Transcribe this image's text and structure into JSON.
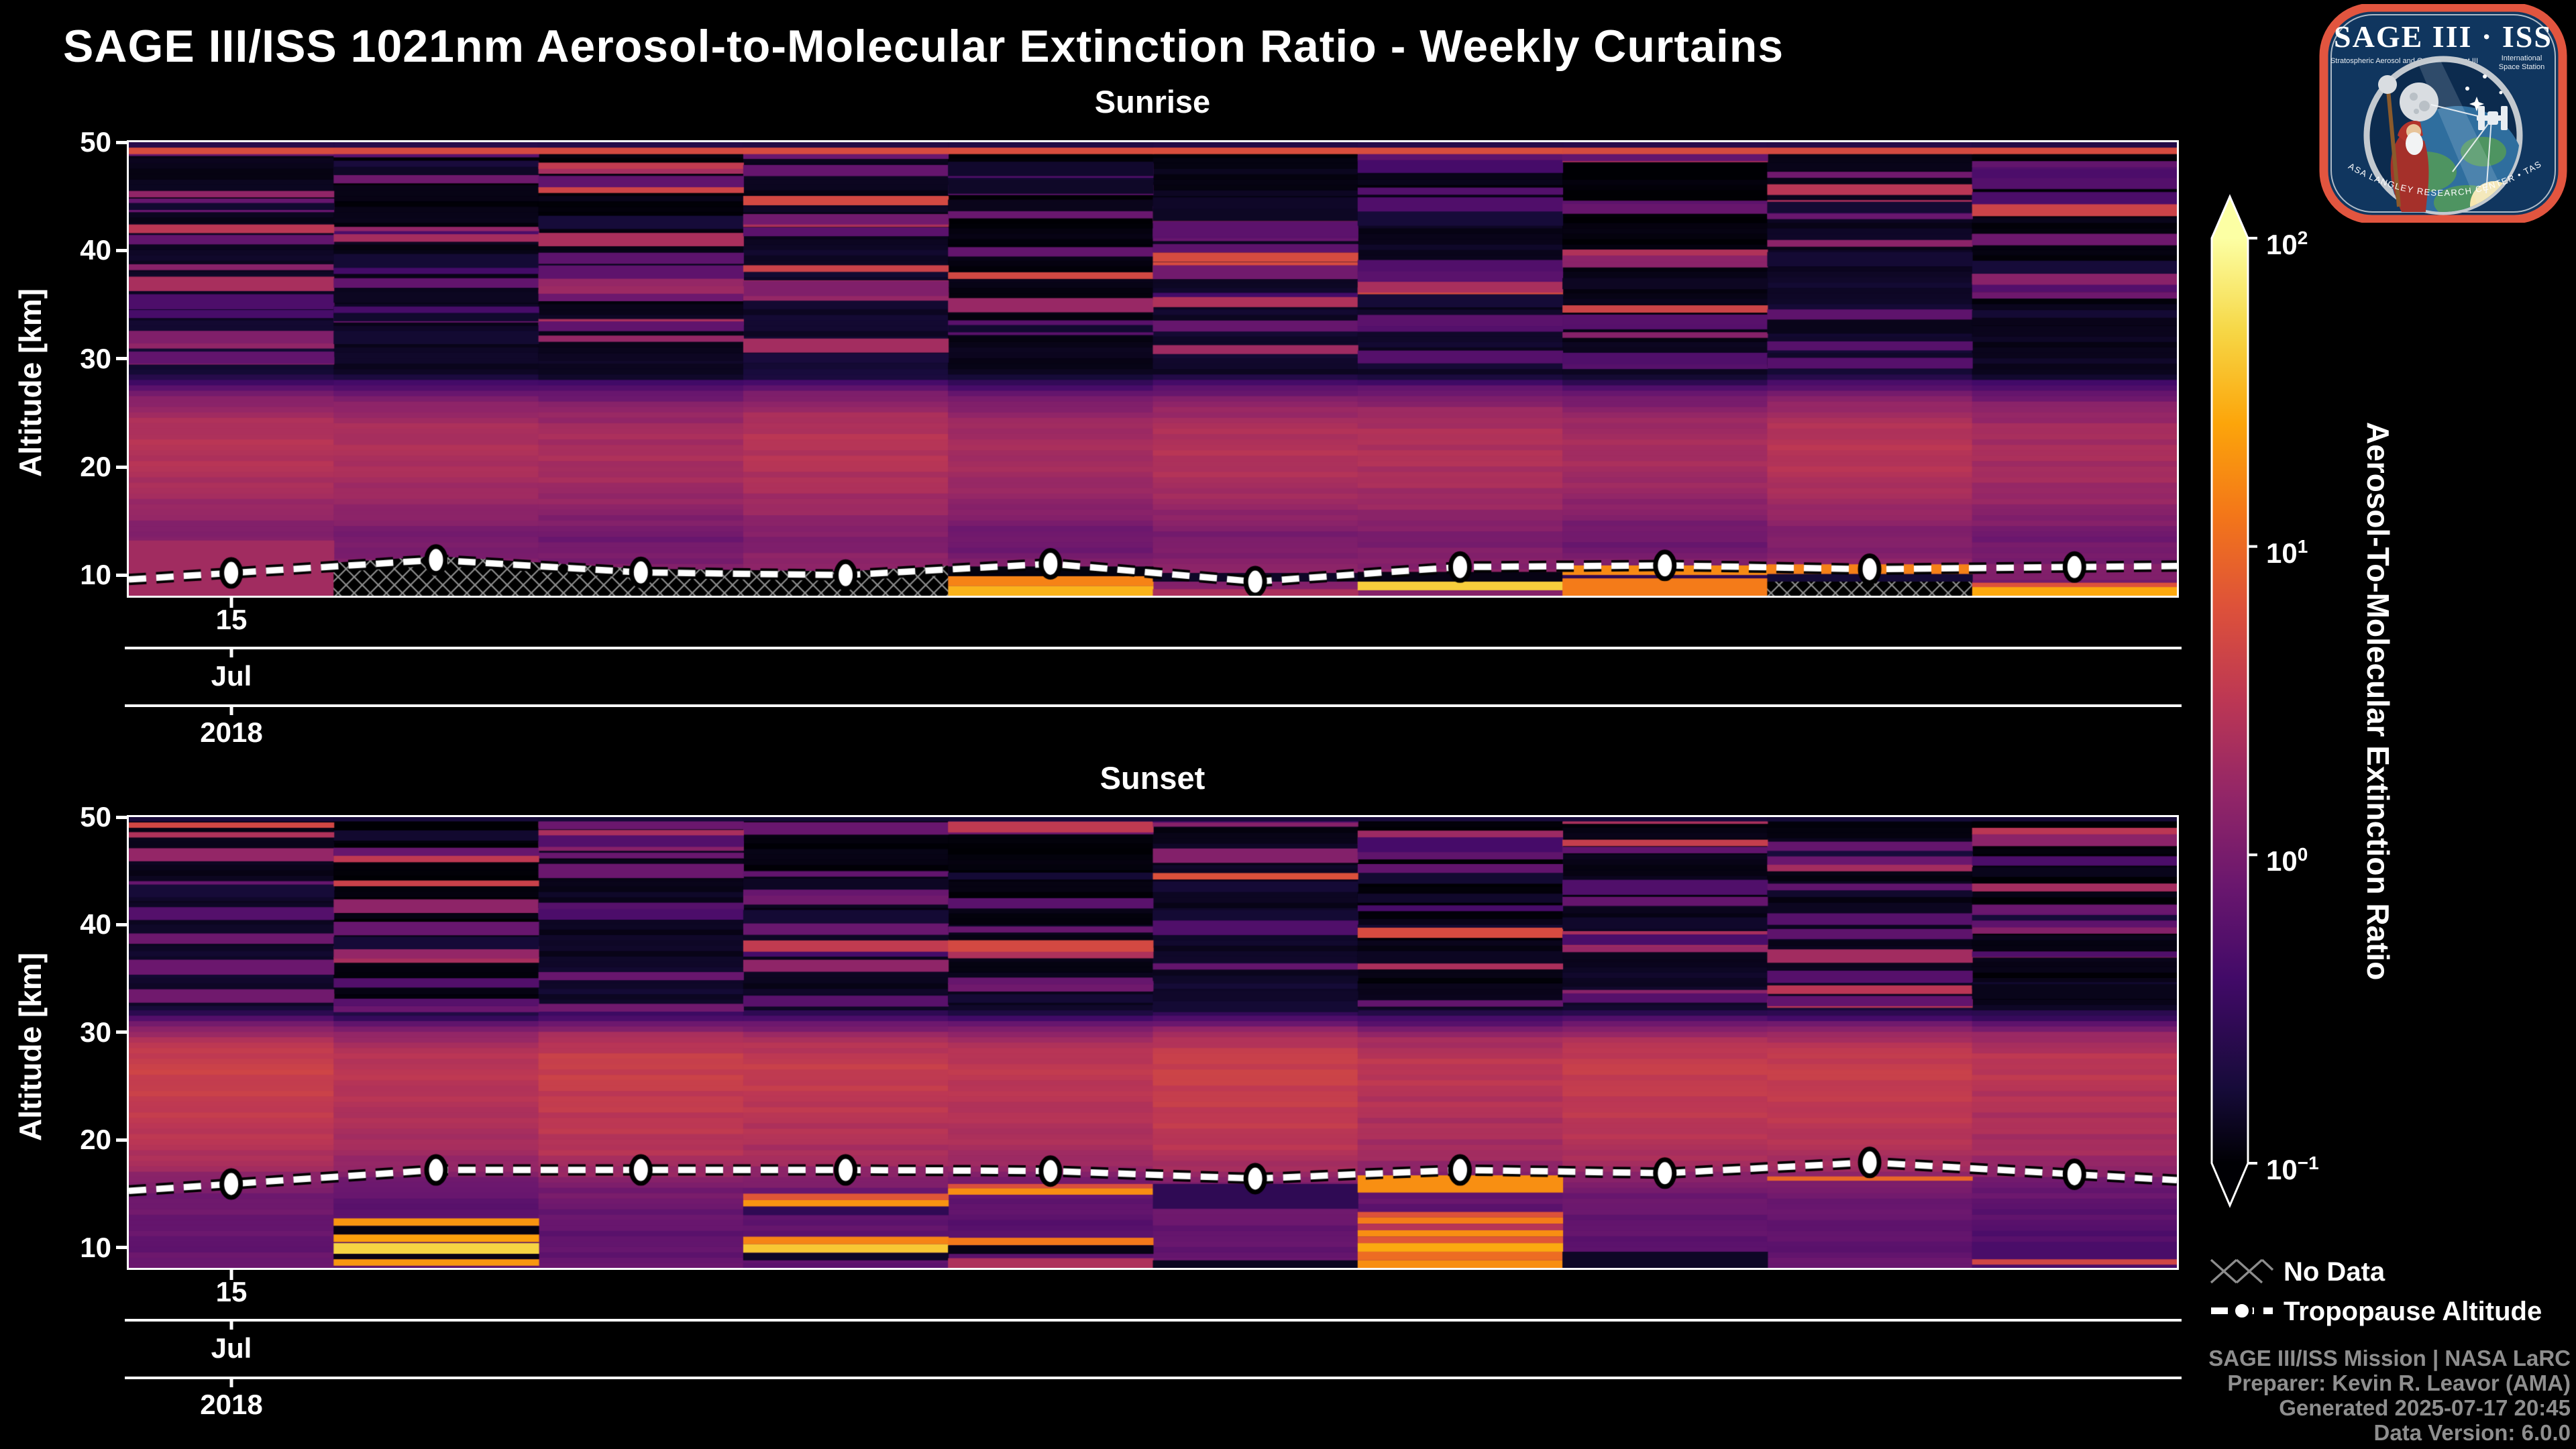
{
  "title": "SAGE III/ISS 1021nm Aerosol-to-Molecular Extinction Ratio - Weekly Curtains",
  "logo": {
    "title": "SAGE III · ISS",
    "subtitle_left": "Stratospheric Aerosol and Gas Experiment III",
    "subtitle_right_1": "International",
    "subtitle_right_2": "Space Station",
    "border_text": "BALL • NASA LANGLEY RESEARCH CENTER • TAS-I • ESA"
  },
  "colorbar": {
    "label": "Aerosol-To-Molecular Extinction Ratio",
    "colormap": "inferno",
    "scale": "log",
    "ticks": [
      {
        "base": "10",
        "exp": "2",
        "frac": 0
      },
      {
        "base": "10",
        "exp": "1",
        "frac": 0.3333
      },
      {
        "base": "10",
        "exp": "0",
        "frac": 0.6667
      },
      {
        "base": "10",
        "exp": "−1",
        "frac": 1
      }
    ]
  },
  "legend": {
    "no_data_label": "No Data",
    "tropopause_label": "Tropopause Altitude"
  },
  "footer": {
    "line1": "SAGE III/ISS Mission | NASA LaRC",
    "line2": "Preparer: Kevin R. Leavor (AMA)",
    "line3": "Generated 2025-07-17 20:45",
    "line4": "Data Version: 6.0.0"
  },
  "chart_data": {
    "type": "heatmap",
    "colormap": "inferno",
    "value_scale": "log10",
    "value_range": [
      0.1,
      100
    ],
    "panels": [
      {
        "title": "Sunrise",
        "ylabel": "Altitude [km]",
        "yticks": [
          50,
          40,
          30,
          20,
          10
        ],
        "altitude_range": [
          8.1,
          50
        ],
        "n_columns": 10,
        "xtick": {
          "day": "15",
          "month": "Jul",
          "year": "2018"
        },
        "tropopause_km": [
          10.2,
          11.4,
          10.25,
          10.0,
          11.05,
          9.4,
          10.75,
          10.9,
          10.55,
          10.75
        ],
        "background_profile": [
          [
            8.1,
            1.1
          ],
          [
            9.5,
            1.2
          ],
          [
            11,
            1.3
          ],
          [
            12.5,
            1.0
          ],
          [
            14,
            1.0
          ],
          [
            16,
            1.5
          ],
          [
            18,
            2.0
          ],
          [
            20,
            2.4
          ],
          [
            22,
            2.5
          ],
          [
            24,
            2.2
          ],
          [
            25.5,
            1.5
          ],
          [
            26.5,
            1.0
          ],
          [
            27.5,
            0.5
          ],
          [
            28.5,
            0.16
          ],
          [
            50,
            0.11
          ]
        ],
        "features": [
          {
            "col": -1,
            "bands": [
              [
                49.5,
                50,
                0.25
              ],
              [
                48.9,
                49.5,
                5.5
              ]
            ]
          },
          {
            "col": 0,
            "bands": [
              [
                8.1,
                13.2,
                2.0
              ],
              [
                44.9,
                45.5,
                1.5
              ],
              [
                41.6,
                42.4,
                3.0
              ]
            ]
          },
          {
            "col": 1,
            "bands": [
              [
                40.8,
                41.5,
                2.2
              ]
            ]
          },
          {
            "col": 2,
            "bands": [
              [
                36.0,
                36.7,
                1.8
              ]
            ]
          },
          {
            "col": 4,
            "bands": [
              [
                9.9,
                10.8,
                0.12
              ],
              [
                9.0,
                9.9,
                16
              ],
              [
                8.1,
                9.0,
                32
              ]
            ]
          },
          {
            "col": 5,
            "bands": [
              [
                9.4,
                10.2,
                0.15
              ],
              [
                8.1,
                8.7,
                2.5
              ]
            ]
          },
          {
            "col": 6,
            "bands": [
              [
                9.4,
                10.3,
                0.12
              ],
              [
                8.6,
                9.4,
                45
              ]
            ]
          },
          {
            "col": 7,
            "bands": [
              [
                10.0,
                10.9,
                16
              ],
              [
                9.7,
                10.0,
                0.3
              ],
              [
                8.1,
                9.7,
                13
              ]
            ]
          },
          {
            "col": 8,
            "bands": [
              [
                10.1,
                11.0,
                15
              ],
              [
                9.4,
                10.1,
                0.2
              ]
            ]
          },
          {
            "col": 9,
            "bands": [
              [
                8.9,
                9.3,
                6
              ],
              [
                8.1,
                8.9,
                26
              ]
            ]
          }
        ],
        "no_data": [
          {
            "type": "below_line",
            "col_start": 1,
            "col_end": 3
          },
          {
            "type": "rect",
            "col": 8,
            "alt_lo": 8.1,
            "alt_hi": 9.4
          }
        ],
        "texture": {
          "seed": 11,
          "stripes_per_column": 16,
          "alt_lo": 28.8,
          "alt_hi": 49.4
        }
      },
      {
        "title": "Sunset",
        "ylabel": "Altitude [km]",
        "yticks": [
          50,
          40,
          30,
          20,
          10
        ],
        "altitude_range": [
          8.1,
          50
        ],
        "n_columns": 10,
        "xtick": {
          "day": "15",
          "month": "Jul",
          "year": "2018"
        },
        "tropopause_km": [
          15.9,
          17.2,
          17.2,
          17.2,
          17.1,
          16.4,
          17.2,
          16.9,
          17.9,
          16.8
        ],
        "background_profile": [
          [
            8.1,
            0.75
          ],
          [
            10,
            0.6
          ],
          [
            12,
            0.65
          ],
          [
            14,
            0.75
          ],
          [
            15.5,
            0.9
          ],
          [
            16.5,
            1.2
          ],
          [
            17.5,
            1.8
          ],
          [
            19,
            2.4
          ],
          [
            21,
            2.8
          ],
          [
            23,
            3.1
          ],
          [
            25,
            3.4
          ],
          [
            26.5,
            3.7
          ],
          [
            28,
            3.3
          ],
          [
            29.5,
            2.2
          ],
          [
            30.5,
            1.0
          ],
          [
            31.5,
            0.35
          ],
          [
            32.5,
            0.15
          ],
          [
            50,
            0.11
          ]
        ],
        "features": [
          {
            "col": -1,
            "bands": [
              [
                49.6,
                50,
                0.2
              ]
            ]
          },
          {
            "col": 0,
            "bands": [
              [
                49.0,
                49.5,
                5.0
              ],
              [
                48.1,
                48.6,
                2.6
              ]
            ]
          },
          {
            "col": 1,
            "bands": [
              [
                45.8,
                46.4,
                3.2
              ],
              [
                12.0,
                12.7,
                20
              ],
              [
                11.2,
                12.0,
                0.12
              ],
              [
                10.5,
                11.2,
                24
              ],
              [
                9.4,
                10.4,
                50
              ],
              [
                8.9,
                9.4,
                0.12
              ],
              [
                8.3,
                8.9,
                20
              ]
            ]
          },
          {
            "col": 2,
            "bands": [
              [
                48.3,
                48.8,
                2.2
              ]
            ]
          },
          {
            "col": 3,
            "bands": [
              [
                14.4,
                15.0,
                7
              ],
              [
                13.8,
                14.4,
                20
              ],
              [
                13.0,
                13.8,
                0.3
              ],
              [
                10.3,
                11.0,
                16
              ],
              [
                9.5,
                10.3,
                40
              ],
              [
                8.8,
                9.5,
                0.15
              ]
            ]
          },
          {
            "col": 4,
            "bands": [
              [
                15.5,
                15.9,
                6
              ],
              [
                14.9,
                15.5,
                17
              ],
              [
                10.2,
                10.9,
                13
              ],
              [
                9.4,
                10.2,
                0.12
              ],
              [
                8.1,
                9.0,
                2.6
              ]
            ]
          },
          {
            "col": 5,
            "bands": [
              [
                44.2,
                44.8,
                6
              ],
              [
                13.6,
                15.9,
                0.3
              ],
              [
                8.1,
                8.8,
                0.15
              ]
            ]
          },
          {
            "col": 6,
            "bands": [
              [
                15.1,
                16.7,
                19
              ],
              [
                12.8,
                13.3,
                6
              ],
              [
                12.2,
                12.8,
                14
              ],
              [
                11.6,
                12.2,
                3
              ],
              [
                11.0,
                11.6,
                17
              ],
              [
                10.4,
                11.0,
                7
              ],
              [
                9.6,
                10.4,
                28
              ],
              [
                8.8,
                9.6,
                11
              ],
              [
                8.1,
                8.8,
                18
              ]
            ]
          },
          {
            "col": 7,
            "bands": [
              [
                47.3,
                47.9,
                4
              ],
              [
                8.1,
                9.6,
                0.15
              ]
            ]
          },
          {
            "col": 8,
            "bands": [
              [
                16.2,
                16.6,
                9
              ]
            ]
          },
          {
            "col": 9,
            "bands": [
              [
                48.4,
                49.0,
                3
              ],
              [
                8.1,
                10.5,
                0.45
              ],
              [
                8.4,
                8.9,
                5
              ]
            ]
          }
        ],
        "no_data": [],
        "texture": {
          "seed": 29,
          "stripes_per_column": 13,
          "alt_lo": 31.8,
          "alt_hi": 49.5
        }
      }
    ]
  }
}
